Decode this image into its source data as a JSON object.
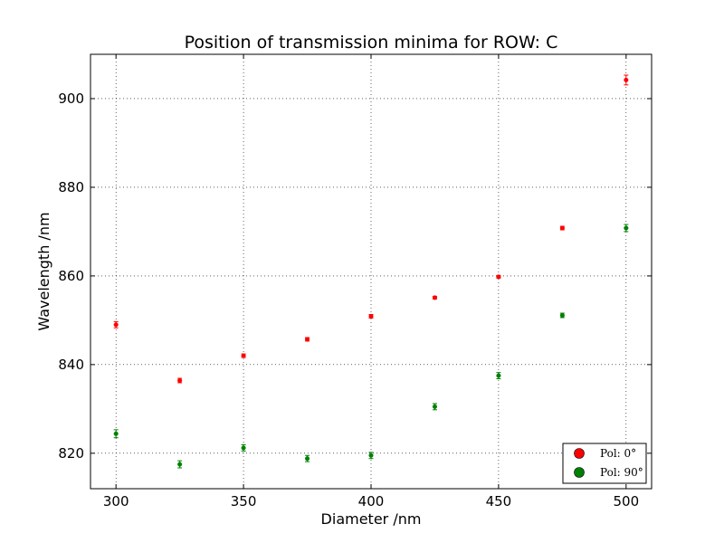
{
  "chart_data": {
    "type": "scatter",
    "title": "Position of transmission minima for ROW: C",
    "xlabel": "Diameter /nm",
    "ylabel": "Wavelength /nm",
    "xlim": [
      290,
      510
    ],
    "ylim": [
      812,
      910
    ],
    "xticks": [
      300,
      350,
      400,
      450,
      500
    ],
    "yticks": [
      820,
      840,
      860,
      880,
      900
    ],
    "grid": true,
    "legend_position": "bottom-right",
    "series": [
      {
        "name": "Pol: 0°",
        "color": "#ff0000",
        "x": [
          300,
          325,
          350,
          375,
          400,
          425,
          450,
          475,
          500
        ],
        "y": [
          849.0,
          836.4,
          842.0,
          845.7,
          850.9,
          855.1,
          859.8,
          870.8,
          904.2
        ],
        "err": [
          0.7,
          0.5,
          0.4,
          0.4,
          0.4,
          0.3,
          0.3,
          0.4,
          1.1
        ]
      },
      {
        "name": "Pol: 90°",
        "color": "#008000",
        "x": [
          300,
          325,
          350,
          375,
          400,
          425,
          450,
          475,
          500
        ],
        "y": [
          824.4,
          817.5,
          821.2,
          818.8,
          819.5,
          830.5,
          837.5,
          851.1,
          870.8
        ],
        "err": [
          0.9,
          0.8,
          0.7,
          0.7,
          0.7,
          0.7,
          0.7,
          0.5,
          0.8
        ]
      }
    ]
  }
}
